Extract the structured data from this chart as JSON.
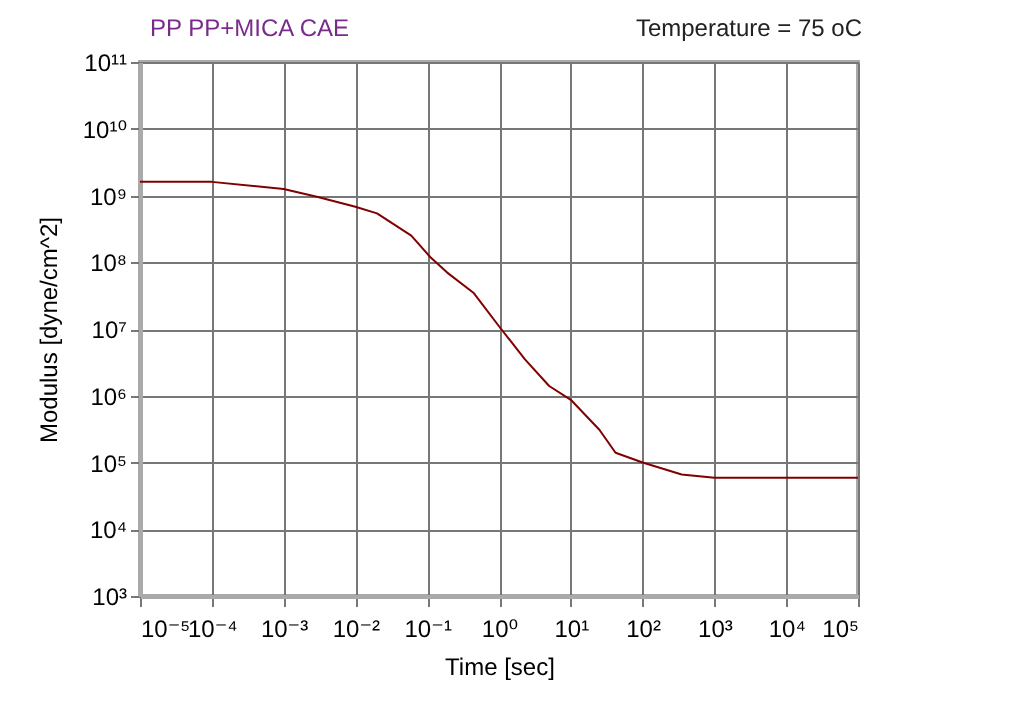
{
  "chart_data": {
    "type": "line",
    "title": "PP   PP+MICA   CAE",
    "annotations": [
      "Temperature = 75 oC"
    ],
    "xlabel": "Time [sec]",
    "ylabel": "Modulus [dyne/cm^2]",
    "log": "xy",
    "grid": true,
    "x": [
      1e-05,
      0.0001,
      0.001,
      0.003,
      0.01,
      0.02,
      0.06,
      0.11,
      0.19,
      0.44,
      1,
      2.3,
      5,
      10,
      25,
      42,
      100,
      350,
      1000,
      100000.0
    ],
    "series": [
      {
        "color": "#800000",
        "values": [
          1600000000.0,
          1600000000.0,
          1250000000.0,
          950000000.0,
          680000000.0,
          540000000.0,
          250000000.0,
          120000000.0,
          70000000.0,
          35000000.0,
          11000000.0,
          3500000.0,
          1400000.0,
          870000.0,
          310000.0,
          140000.0,
          100000.0,
          66000.0,
          59000.0,
          59000.0
        ]
      }
    ],
    "xlim": [
      1e-05,
      100000.0
    ],
    "ylim": [
      1000.0,
      100000000000.0
    ],
    "xticks": [
      {
        "value": 1e-05,
        "label": "10⁻⁵"
      },
      {
        "value": 0.0001,
        "label": "10⁻⁴"
      },
      {
        "value": 0.001,
        "label": "10⁻³"
      },
      {
        "value": 0.01,
        "label": "10⁻²"
      },
      {
        "value": 0.1,
        "label": "10⁻¹"
      },
      {
        "value": 1,
        "label": "10⁰"
      },
      {
        "value": 10,
        "label": "10¹"
      },
      {
        "value": 100,
        "label": "10²"
      },
      {
        "value": 1000,
        "label": "10³"
      },
      {
        "value": 10000.0,
        "label": "10⁴"
      },
      {
        "value": 100000.0,
        "label": "10⁵"
      }
    ],
    "yticks": [
      {
        "value": 1000.0,
        "label": "10³"
      },
      {
        "value": 10000.0,
        "label": "10⁴"
      },
      {
        "value": 100000.0,
        "label": "10⁵"
      },
      {
        "value": 1000000.0,
        "label": "10⁶"
      },
      {
        "value": 10000000.0,
        "label": "10⁷"
      },
      {
        "value": 100000000.0,
        "label": "10⁸"
      },
      {
        "value": 1000000000.0,
        "label": "10⁹"
      },
      {
        "value": 10000000000.0,
        "label": "10¹⁰"
      },
      {
        "value": 100000000000.0,
        "label": "10¹¹"
      }
    ]
  }
}
